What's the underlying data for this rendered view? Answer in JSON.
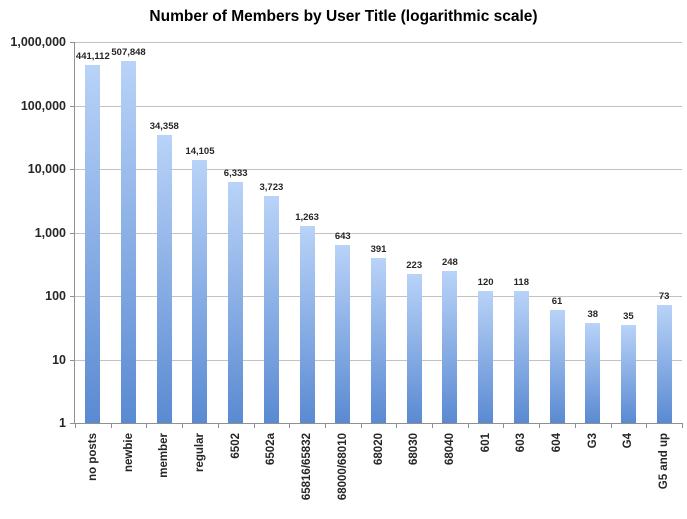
{
  "chart_data": {
    "type": "bar",
    "title": "Number of Members by User Title (logarithmic scale)",
    "xlabel": "",
    "ylabel": "",
    "y_scale": "logarithmic",
    "ylim": [
      1,
      1000000
    ],
    "grid": "horizontal gridlines at each power of 10",
    "legend_position": "none",
    "y_tick_labels": [
      "1,000,000",
      "100,000",
      "10,000",
      "1,000",
      "100",
      "10",
      "1"
    ],
    "categories": [
      "no posts",
      "newbie",
      "member",
      "regular",
      "6502",
      "6502a",
      "65816/65832",
      "68000/68010",
      "68020",
      "68030",
      "68040",
      "601",
      "603",
      "604",
      "G3",
      "G4",
      "G5 and up"
    ],
    "values": [
      441112,
      507848,
      34358,
      14105,
      6333,
      3723,
      1263,
      643,
      391,
      223,
      248,
      120,
      118,
      61,
      38,
      35,
      73
    ],
    "value_labels": [
      "441,112",
      "507,848",
      "34,358",
      "14,105",
      "6,333",
      "3,723",
      "1,263",
      "643",
      "391",
      "223",
      "248",
      "120",
      "118",
      "61",
      "38",
      "35",
      "73"
    ],
    "colors": {
      "bar_gradient_top": "#b9d3f8",
      "bar_gradient_bottom": "#5a8ad2",
      "gridline": "#c2c2c2",
      "axis": "#8f8f8f",
      "title_text": "#000000",
      "label_text": "#262626",
      "background": "#ffffff"
    }
  }
}
